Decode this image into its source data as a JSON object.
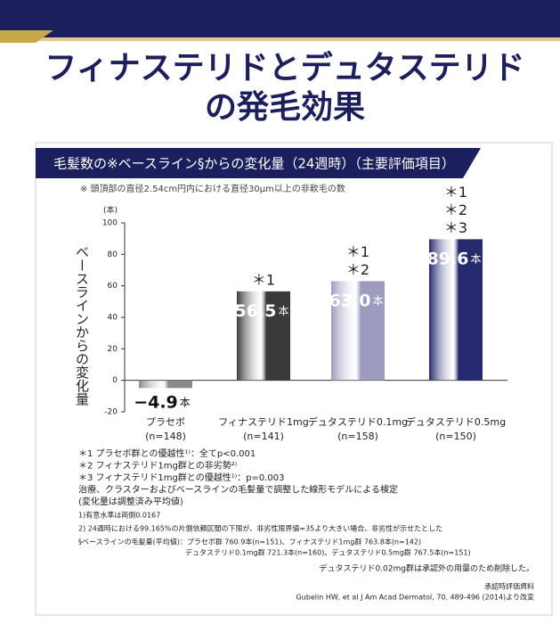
{
  "header": {
    "title_line1": "フィナステリドとデュタステリド",
    "title_line2": "の発毛効果"
  },
  "chart_data": {
    "type": "bar",
    "title": "毛髪数の※ベースライン§からの変化量（24週時）（主要評価項目）",
    "subtitle": "※ 頭頂部の直径2.54cm円内における直径30μm以上の非軟毛の数",
    "y_unit": "(本)",
    "ylabel": "ベースラインからの変化量",
    "categories": [
      "プラセボ",
      "フィナステリド1mg",
      "デュタステリド0.1mg",
      "デュタステリド0.5mg"
    ],
    "sample_sizes": [
      "(n=148)",
      "(n=141)",
      "(n=158)",
      "(n=150)"
    ],
    "values": [
      -4.9,
      56.5,
      63.0,
      89.6
    ],
    "value_labels": [
      "−4.9",
      "56.5",
      "63.0",
      "89.6"
    ],
    "value_unit": "本",
    "significance": [
      [],
      [
        "＊1"
      ],
      [
        "＊1",
        "＊2"
      ],
      [
        "＊1",
        "＊2",
        "＊3"
      ]
    ],
    "colors": [
      "#8a8a8a",
      "#3a3a3a",
      "#9c9cc0",
      "#262a6e"
    ],
    "ylim": [
      -20,
      100
    ],
    "yticks": [
      -20,
      0,
      20,
      40,
      60,
      80,
      100
    ]
  },
  "footnotes": {
    "main": [
      "＊1 プラセボ群との優越性¹⁾：全てp<0.001",
      "＊2 フィナステリド1mg群との非劣勢²⁾",
      "＊3 フィナステリド1mg群との優越性¹⁾：p=0.003",
      "治療、クラスターおよびベースラインの毛髪量で調整した線形モデルによる検定",
      "(変化量は調整済み平均値)"
    ],
    "small": [
      "1)有意水準は両側0.0167",
      "2) 24週時における99.165%の片側信頼区間の下限が、非劣性限界値=35より大きい場合、非劣性が示せたとした",
      "§ベースラインの毛髪量(平均値)：プラセボ群 760.9本(n=151)、フィナステリド1mg群 763.8本(n=142)",
      "デュタステリド0.1mg群 721.3本(n=160)、デュタステリド0.5mg群 767.5本(n=151)"
    ],
    "note": "デュタステリド0.02mg群は承認外の用量のため削除した。",
    "source1": "承認時評価資料",
    "source2": "Gubelin HW, et al J Am Acad Dermatol, 70, 489-496 (2014)より改変"
  }
}
